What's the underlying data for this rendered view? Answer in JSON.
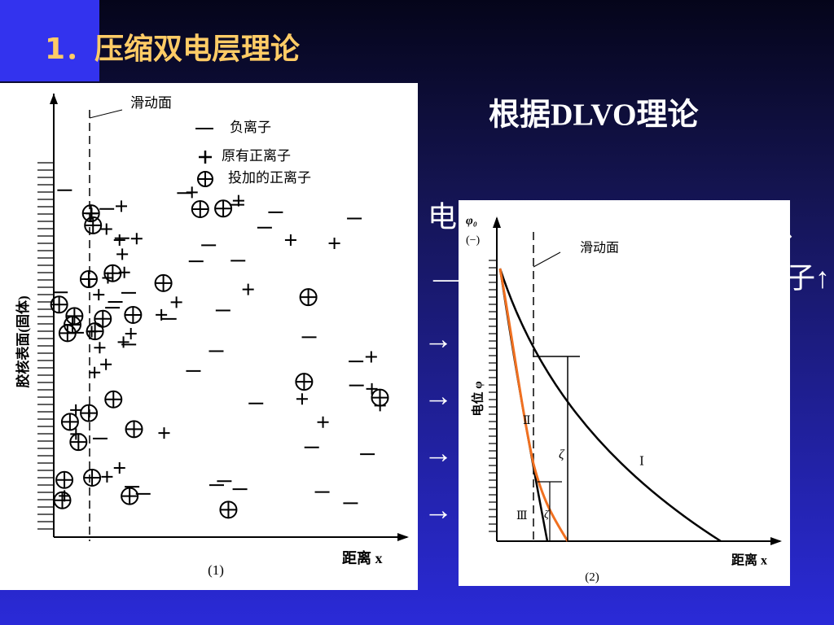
{
  "header": {
    "title": "1．压缩双电层理论"
  },
  "text": {
    "heading": "根据DLVO理论",
    "fragments": [
      "电",
      "、",
      "—",
      "子↑",
      "→",
      "→",
      "→",
      "→"
    ]
  },
  "figure1": {
    "slip_plane": "滑动面",
    "legend": [
      "负离子",
      "原有正离子",
      "投加的正离子"
    ],
    "y_label": "胶核表面(固体)",
    "x_label": "距离 x",
    "caption": "(1)"
  },
  "figure2": {
    "phi0": "φ₀",
    "sign": "(−)",
    "slip_plane": "滑动面",
    "y_label": "电位 φ",
    "curves": [
      "Ⅰ",
      "Ⅱ",
      "Ⅲ"
    ],
    "zeta": [
      "ζ",
      "ζ"
    ],
    "x_label": "距离 x",
    "caption": "(2)"
  }
}
